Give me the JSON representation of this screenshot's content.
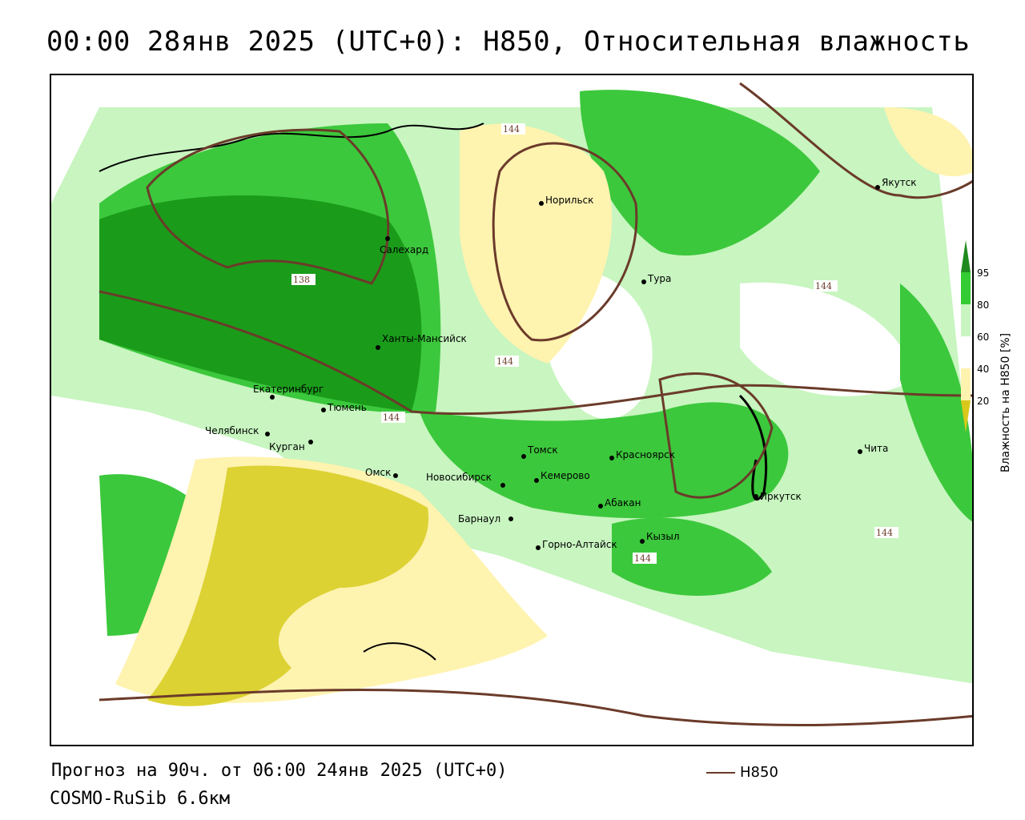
{
  "title": "00:00 28янв 2025 (UTC+0): H850, Относительная влажность",
  "footer": {
    "forecast": "Прогноз на 90ч. от 06:00 24янв 2025 (UTC+0)",
    "model": "COSMO-RuSib 6.6км",
    "contour_legend_label": "H850"
  },
  "colorbar": {
    "title": "Влажность на H850 [%]",
    "ticks": [
      "95",
      "80",
      "60",
      "40",
      "20"
    ],
    "colors": [
      "#1f8a1f",
      "#33cc33",
      "#c8f5c0",
      "#ffffff",
      "#fff3b0",
      "#d9c81a"
    ]
  },
  "colors": {
    "contour": "#6b3b2a",
    "dark_green": "#1a9c1a",
    "green": "#3cc83c",
    "light_green": "#c8f5c0",
    "light_yellow": "#fff3b0",
    "olive_yellow": "#dcd233"
  },
  "contour_labels": [
    "144",
    "138",
    "144",
    "144",
    "144",
    "144",
    "144"
  ],
  "cities": [
    {
      "name": "Норильск"
    },
    {
      "name": "Якутск"
    },
    {
      "name": "Салехард"
    },
    {
      "name": "Тура"
    },
    {
      "name": "Ханты-Мансийск"
    },
    {
      "name": "Екатеринбург"
    },
    {
      "name": "Тюмень"
    },
    {
      "name": "Челябинск"
    },
    {
      "name": "Курган"
    },
    {
      "name": "Омск"
    },
    {
      "name": "Новосибирск"
    },
    {
      "name": "Томск"
    },
    {
      "name": "Кемерово"
    },
    {
      "name": "Красноярск"
    },
    {
      "name": "Барнаул"
    },
    {
      "name": "Абакан"
    },
    {
      "name": "Горно-Алтайск"
    },
    {
      "name": "Кызыл"
    },
    {
      "name": "Иркутск"
    },
    {
      "name": "Чита"
    }
  ]
}
